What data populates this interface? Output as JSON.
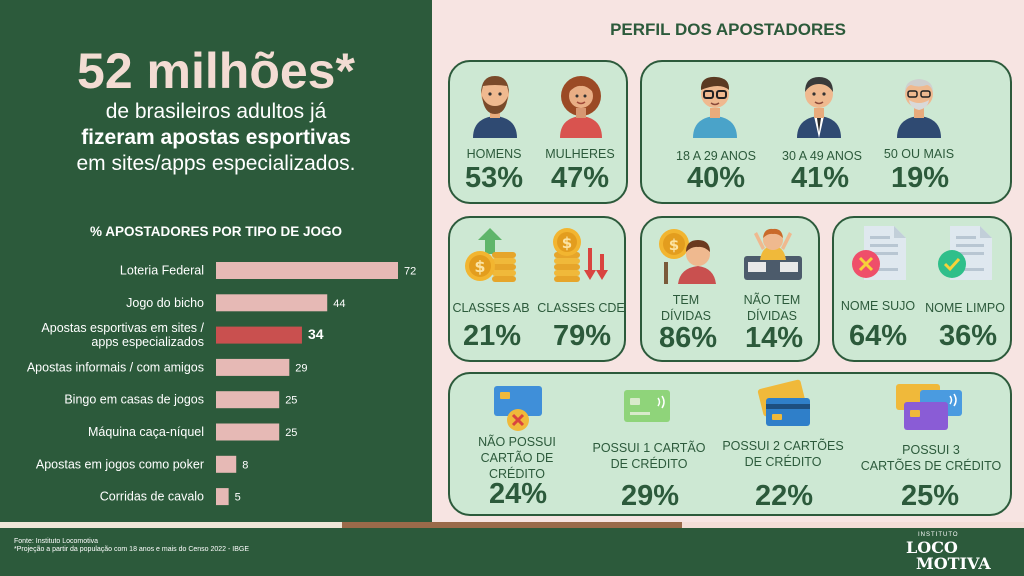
{
  "hero": {
    "number": "52 milhões*",
    "line1": "de brasileiros adultos já",
    "line2": "fizeram apostas esportivas",
    "line3": "em sites/apps especializados."
  },
  "chart_data": {
    "type": "bar",
    "orientation": "horizontal",
    "title": "% APOSTADORES POR TIPO DE JOGO",
    "categories": [
      [
        "Loteria Federal"
      ],
      [
        "Jogo do bicho"
      ],
      [
        "Apostas esportivas em sites /",
        "apps especializados"
      ],
      [
        "Apostas informais / com amigos"
      ],
      [
        "Bingo em casas de jogos"
      ],
      [
        "Máquina caça-níquel"
      ],
      [
        "Apostas em jogos como poker"
      ],
      [
        "Corridas de cavalo"
      ]
    ],
    "values": [
      72,
      44,
      34,
      29,
      25,
      25,
      8,
      5
    ],
    "highlight_index": 2,
    "colors": {
      "bar": "#e6b9b5",
      "highlight": "#c9504f"
    },
    "xlim": [
      0,
      72
    ]
  },
  "profile": {
    "title": "PERFIL DOS APOSTADORES",
    "gender": [
      {
        "label": "HOMENS",
        "pct": "53%"
      },
      {
        "label": "MULHERES",
        "pct": "47%"
      }
    ],
    "age": [
      {
        "label": "18 A 29 ANOS",
        "pct": "40%"
      },
      {
        "label": "30 A 49 ANOS",
        "pct": "41%"
      },
      {
        "label": "50 OU MAIS",
        "pct": "19%"
      }
    ],
    "class": [
      {
        "label": "CLASSES AB",
        "pct": "21%"
      },
      {
        "label": "CLASSES CDE",
        "pct": "79%"
      }
    ],
    "debt": [
      {
        "label1": "TEM",
        "label2": "DÍVIDAS",
        "pct": "86%"
      },
      {
        "label1": "NÃO TEM",
        "label2": "DÍVIDAS",
        "pct": "14%"
      }
    ],
    "name": [
      {
        "label": "NOME SUJO",
        "pct": "64%"
      },
      {
        "label": "NOME LIMPO",
        "pct": "36%"
      }
    ],
    "cards": [
      {
        "label1": "NÃO POSSUI",
        "label2": "CARTÃO DE CRÉDITO",
        "pct": "24%"
      },
      {
        "label1": "POSSUI 1 CARTÃO",
        "label2": "DE CRÉDITO",
        "pct": "29%"
      },
      {
        "label1": "POSSUI 2 CARTÕES",
        "label2": "DE CRÉDITO",
        "pct": "22%"
      },
      {
        "label1": "POSSUI 3",
        "label2": "CARTÕES DE CRÉDITO",
        "pct": "25%"
      }
    ]
  },
  "footer": {
    "source": "Fonte: Instituto Locomotiva",
    "note": "*Projeção a partir da população com 18 anos e mais do Censo 2022 - IBGE",
    "logo_top": "INSTITUTO",
    "logo_line1": "LOCO",
    "logo_line2": "MOTIVA"
  },
  "icons": [
    "man-icon",
    "woman-icon",
    "young-man-icon",
    "businessman-icon",
    "old-man-icon",
    "coins-up-icon",
    "coins-down-icon",
    "debt-icon",
    "celebrate-icon",
    "document-red-icon",
    "document-green-icon",
    "card-crossed-icon",
    "card-icon",
    "two-cards-icon",
    "three-cards-icon"
  ]
}
